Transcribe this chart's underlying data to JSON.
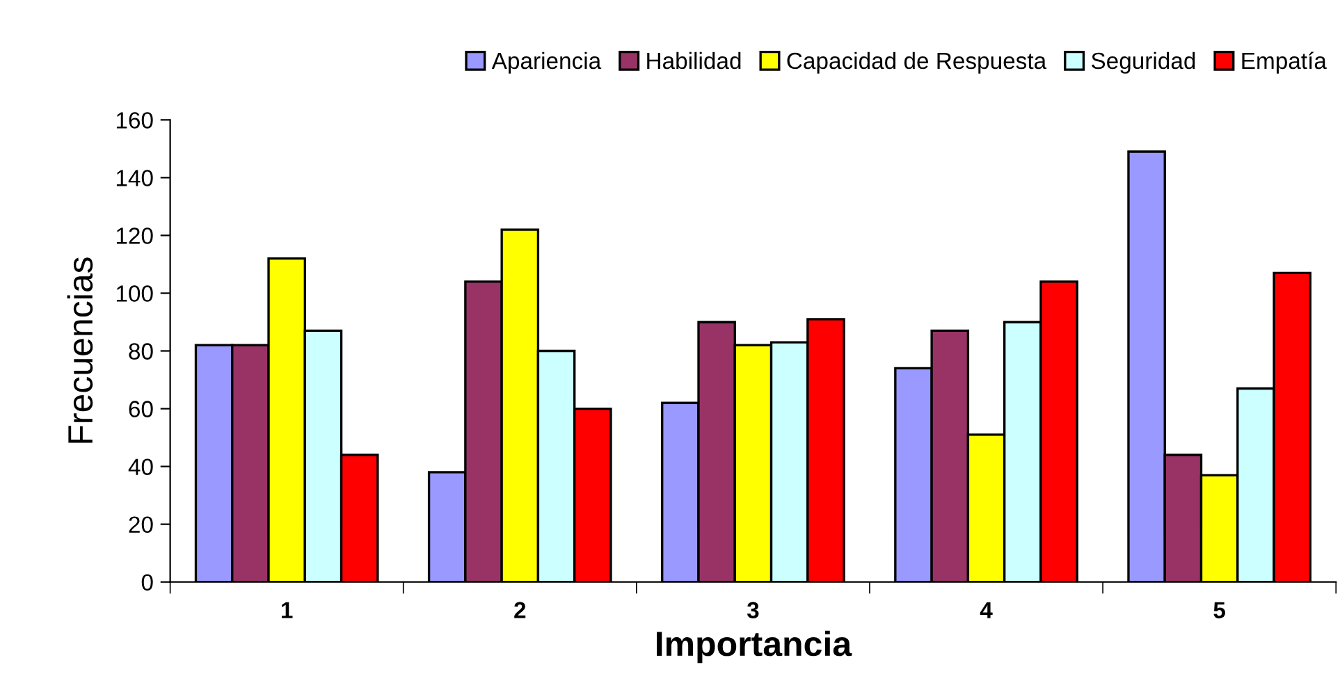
{
  "chart_data": {
    "type": "bar",
    "xlabel": "Importancia",
    "ylabel": "Frecuencias",
    "categories": [
      "1",
      "2",
      "3",
      "4",
      "5"
    ],
    "series": [
      {
        "name": "Apariencia",
        "color": "#9999ff",
        "values": [
          82,
          38,
          62,
          74,
          149
        ]
      },
      {
        "name": "Habilidad",
        "color": "#993366",
        "values": [
          82,
          104,
          90,
          87,
          44
        ]
      },
      {
        "name": "Capacidad de Respuesta",
        "color": "#ffff00",
        "values": [
          112,
          122,
          82,
          51,
          37
        ]
      },
      {
        "name": "Seguridad",
        "color": "#ccffff",
        "values": [
          87,
          80,
          83,
          90,
          67
        ]
      },
      {
        "name": "Empatía",
        "color": "#ff0000",
        "values": [
          44,
          60,
          91,
          104,
          107
        ]
      }
    ],
    "ylim": [
      0,
      160
    ],
    "yticks": [
      0,
      20,
      40,
      60,
      80,
      100,
      120,
      140,
      160
    ],
    "grid": false,
    "legend": "top"
  }
}
